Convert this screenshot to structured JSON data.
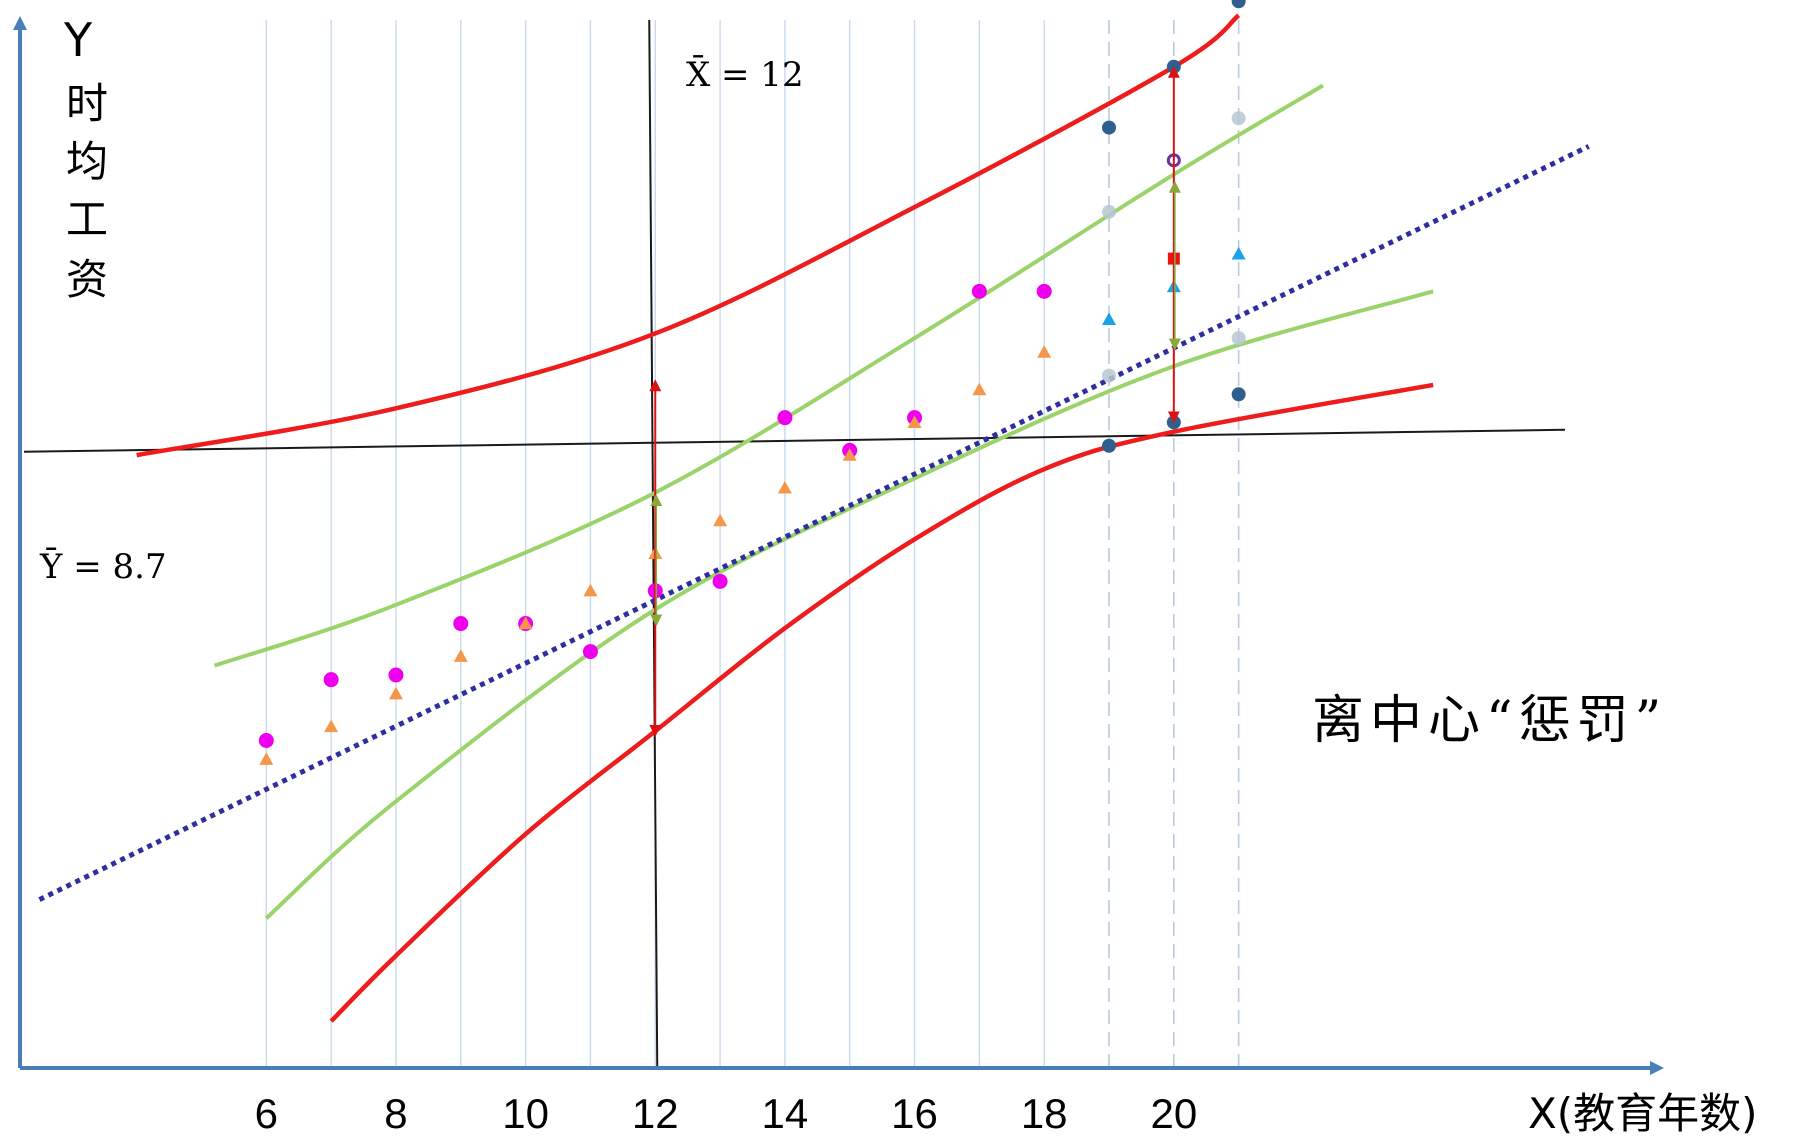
{
  "chart_data": {
    "type": "scatter",
    "ylabel_symbol": "Y",
    "ylabel_chars": [
      "时",
      "均",
      "工",
      "资"
    ],
    "xlabel": "X(教育年数)",
    "x_ticks": [
      {
        "value": 6,
        "label": "6"
      },
      {
        "value": 8,
        "label": "8"
      },
      {
        "value": 10,
        "label": "10"
      },
      {
        "value": 12,
        "label": "12"
      },
      {
        "value": 14,
        "label": "14"
      },
      {
        "value": 16,
        "label": "16"
      },
      {
        "value": 18,
        "label": "18"
      },
      {
        "value": 20,
        "label": "20",
        "color": "#1aa3e8"
      }
    ],
    "x_mean_label": "X̄ = 12",
    "y_mean_label": "Ȳ = 8.7",
    "annotation": "离中心“惩罚”",
    "xlim": [
      2.2,
      27.5
    ],
    "ylim": [
      -4.6,
      17.8
    ],
    "x_mean": 12,
    "y_mean": 8.7,
    "vertical_gridlines": [
      6,
      7,
      8,
      9,
      10,
      11,
      12,
      13,
      14,
      15,
      16,
      17,
      18
    ],
    "dashed_gridlines": [
      19,
      20,
      21
    ],
    "colors": {
      "axis": "#4a7ebb",
      "regression": "#2e2e9e",
      "prediction_band": "#ee1c1c",
      "confidence_band": "#9ad36a",
      "observed": "#ee00ee",
      "fitted": "#f4974a",
      "extrapolated": "#1aa3e8",
      "band_point": "#2f5f8f",
      "gray_point": "#b7c7d4",
      "forecast": "#ee1111",
      "forecast_circle": "#7030a0",
      "guide": "#1a1a1a"
    },
    "regression_line": {
      "x": [
        2.5,
        26.4
      ],
      "y": [
        -1.0,
        15.1
      ]
    },
    "prediction_upper": {
      "x": [
        4.0,
        8.0,
        12.0,
        16.0,
        20.0,
        21.0
      ],
      "y": [
        8.5,
        9.5,
        11.1,
        13.8,
        16.8,
        17.9
      ]
    },
    "prediction_lower": {
      "x": [
        7.0,
        8.0,
        10.0,
        12.0,
        14.0,
        16.0,
        18.0,
        20.0,
        24.0
      ],
      "y": [
        -3.6,
        -2.2,
        0.4,
        2.6,
        4.8,
        6.7,
        8.2,
        9.0,
        10.0
      ]
    },
    "confidence_upper": {
      "x": [
        5.2,
        8.0,
        12.0,
        16.0,
        20.0,
        22.3
      ],
      "y": [
        4.0,
        5.3,
        7.7,
        11.0,
        14.5,
        16.4
      ]
    },
    "confidence_lower": {
      "x": [
        6.0,
        8.0,
        12.0,
        16.0,
        20.0,
        24.0
      ],
      "y": [
        -1.4,
        1.1,
        5.2,
        8.0,
        10.4,
        12.0
      ]
    },
    "observed_points": {
      "x": [
        6,
        7,
        8,
        9,
        10,
        11,
        12,
        13,
        14,
        15,
        16,
        17,
        18
      ],
      "y": [
        2.4,
        3.7,
        3.8,
        4.9,
        4.9,
        4.3,
        5.6,
        5.8,
        9.3,
        8.6,
        9.3,
        12.0,
        12.0
      ]
    },
    "fitted_points": {
      "x": [
        6,
        7,
        8,
        9,
        10,
        11,
        12,
        13,
        14,
        15,
        16,
        17,
        18
      ],
      "y": [
        2.0,
        2.7,
        3.4,
        4.2,
        4.9,
        5.6,
        6.4,
        7.1,
        7.8,
        8.5,
        9.2,
        9.9,
        10.7
      ]
    },
    "extrapolated_points": {
      "x": [
        19,
        20,
        21
      ],
      "y": [
        11.4,
        12.1,
        12.8
      ]
    },
    "band_points": {
      "x": [
        19,
        20,
        21,
        19,
        20,
        21
      ],
      "y": [
        15.5,
        16.8,
        18.2,
        8.7,
        9.2,
        9.8
      ]
    },
    "confidence_points": {
      "x": [
        19,
        21,
        19,
        21
      ],
      "y": [
        13.7,
        15.7,
        10.2,
        11.0
      ]
    },
    "forecast_point": {
      "x": 20,
      "y": 12.7
    },
    "forecast_circle_point": {
      "x": 20,
      "y": 14.8
    },
    "interval_x12": {
      "x": 12,
      "outer": [
        2.5,
        10.1
      ],
      "inner": [
        4.9,
        7.6
      ]
    },
    "interval_x20": {
      "x": 20,
      "outer": [
        9.2,
        16.8
      ],
      "inner": [
        10.8,
        14.3
      ]
    }
  }
}
